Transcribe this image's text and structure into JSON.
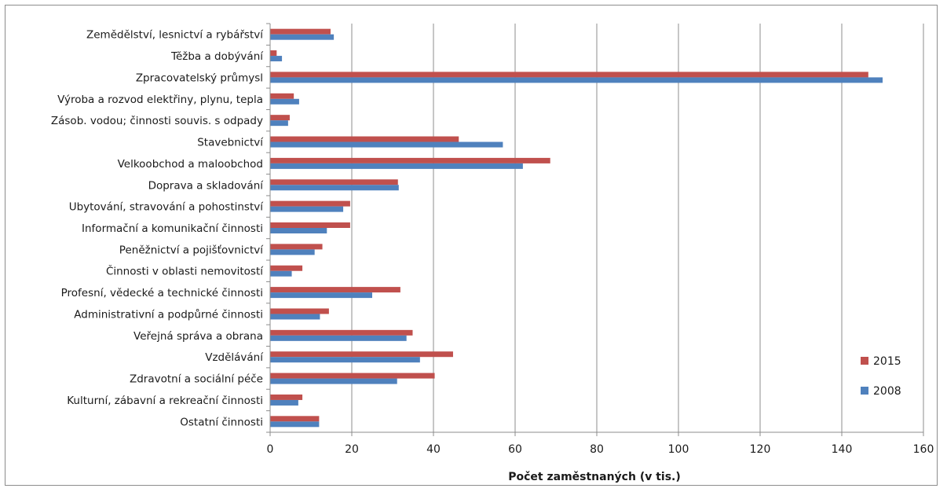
{
  "chart_data": {
    "type": "bar",
    "orientation": "horizontal",
    "categories": [
      "Zemědělství, lesnictví a rybářství",
      "Těžba a dobývání",
      "Zpracovatelský průmysl",
      "Výroba a rozvod elektřiny, plynu, tepla",
      "Zásob. vodou; činnosti souvis. s odpady",
      "Stavebnictví",
      "Velkoobchod a maloobchod",
      "Doprava a skladování",
      "Ubytování, stravování a pohostinství",
      "Informační a komunikační činnosti",
      "Peněžnictví a pojišťovnictví",
      "Činnosti v oblasti nemovitostí",
      "Profesní, vědecké a technické činnosti",
      "Administrativní a podpůrné činnosti",
      "Veřejná správa a obrana",
      "Vzdělávání",
      "Zdravotní a sociální péče",
      "Kulturní, zábavní a rekreační činnosti",
      "Ostatní činnosti"
    ],
    "series": [
      {
        "name": "2015",
        "color": "#c0504d",
        "values": [
          14.8,
          1.6,
          146.5,
          5.8,
          4.8,
          46.2,
          68.6,
          31.3,
          19.6,
          19.6,
          12.8,
          7.9,
          31.9,
          14.4,
          34.9,
          44.8,
          40.3,
          7.9,
          12.0
        ]
      },
      {
        "name": "2008",
        "color": "#4f81bd",
        "values": [
          15.6,
          2.9,
          150.0,
          7.1,
          4.4,
          57.0,
          61.9,
          31.5,
          17.9,
          13.9,
          10.9,
          5.3,
          25.0,
          12.2,
          33.4,
          36.7,
          31.1,
          6.9,
          12.0
        ]
      }
    ],
    "xlim": [
      0,
      160
    ],
    "xticks": [
      "0",
      "20",
      "40",
      "60",
      "80",
      "100",
      "120",
      "140",
      "160"
    ],
    "xlabel": "Počet zaměstnaných  (v tis.)",
    "ylabel": "",
    "title": "",
    "grid": true,
    "legend_position": "bottom-right"
  }
}
